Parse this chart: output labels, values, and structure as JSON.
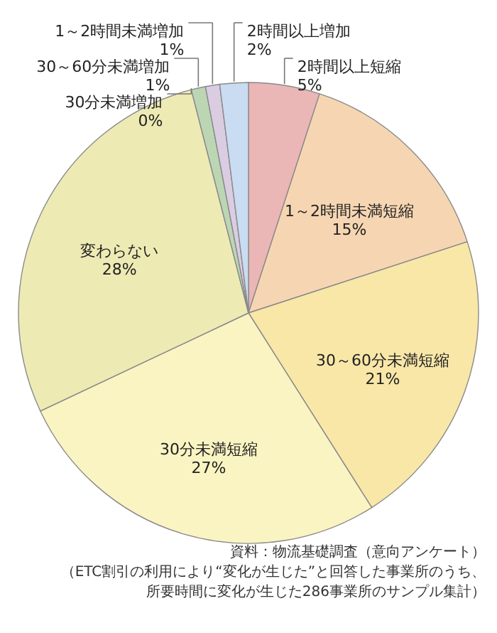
{
  "chart_data": {
    "type": "pie",
    "categories": [
      "2時間以上短縮",
      "1～2時間未満短縮",
      "30～60分未満短縮",
      "30分未満短縮",
      "変わらない",
      "30分未満増加",
      "30～60分未満増加",
      "1～2時間未満増加",
      "2時間以上増加"
    ],
    "values": [
      5,
      15,
      21,
      27,
      28,
      0,
      1,
      1,
      2
    ],
    "value_labels": [
      "5%",
      "15%",
      "21%",
      "27%",
      "28%",
      "0%",
      "1%",
      "1%",
      "2%"
    ],
    "colors": [
      "#ebb6b6",
      "#f6d6b2",
      "#f9e7a8",
      "#faf4c2",
      "#eeeab4",
      "#ece6a8",
      "#bcd6b4",
      "#dacde2",
      "#c9dcf1"
    ],
    "annotations": [
      "資料：物流基礎調査（意向アンケート）",
      "（ETC割引の利用により“変化が生じた”と回答した事業所のうち、",
      "所要時間に変化が生じた286事業所のサンプル集計）"
    ]
  }
}
